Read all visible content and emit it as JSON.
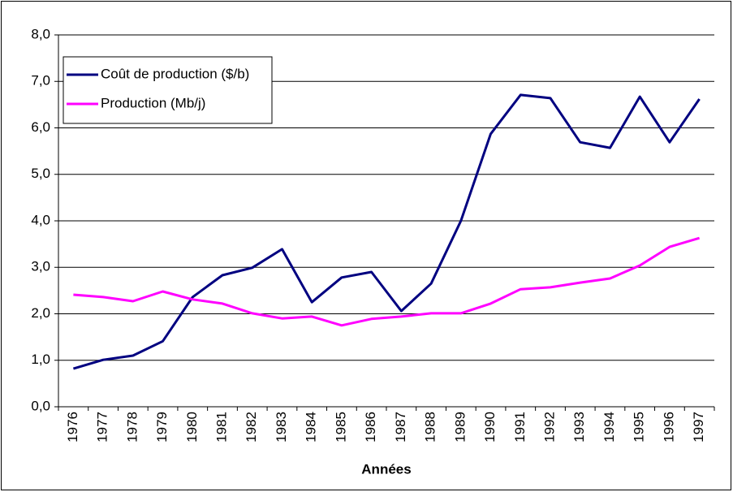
{
  "chart_data": {
    "type": "line",
    "x_label": "Années",
    "categories": [
      "1976",
      "1977",
      "1978",
      "1979",
      "1980",
      "1981",
      "1982",
      "1983",
      "1984",
      "1985",
      "1986",
      "1987",
      "1988",
      "1989",
      "1990",
      "1991",
      "1992",
      "1993",
      "1994",
      "1995",
      "1996",
      "1997"
    ],
    "series": [
      {
        "name": "Coût de production ($/b)",
        "color": "#000080",
        "values": [
          0.82,
          1.01,
          1.1,
          1.41,
          2.36,
          2.83,
          2.99,
          3.39,
          2.25,
          2.78,
          2.9,
          2.06,
          2.65,
          4.0,
          5.87,
          6.71,
          6.64,
          5.69,
          5.57,
          6.67,
          5.69,
          6.62
        ]
      },
      {
        "name": "Production (Mb/j)",
        "color": "#ff00ff",
        "values": [
          2.41,
          2.36,
          2.27,
          2.48,
          2.31,
          2.22,
          2.01,
          1.9,
          1.94,
          1.75,
          1.89,
          1.94,
          2.01,
          2.01,
          2.22,
          2.53,
          2.57,
          2.67,
          2.76,
          3.04,
          3.44,
          3.63
        ]
      }
    ],
    "ylim": [
      0,
      8
    ],
    "yticks": [
      {
        "value": 0,
        "label": "0,0"
      },
      {
        "value": 1,
        "label": "1,0"
      },
      {
        "value": 2,
        "label": "2,0"
      },
      {
        "value": 3,
        "label": "3,0"
      },
      {
        "value": 4,
        "label": "4,0"
      },
      {
        "value": 5,
        "label": "5,0"
      },
      {
        "value": 6,
        "label": "6,0"
      },
      {
        "value": 7,
        "label": "7,0"
      },
      {
        "value": 8,
        "label": "8,0"
      }
    ],
    "grid": true,
    "legend": "upper left"
  }
}
